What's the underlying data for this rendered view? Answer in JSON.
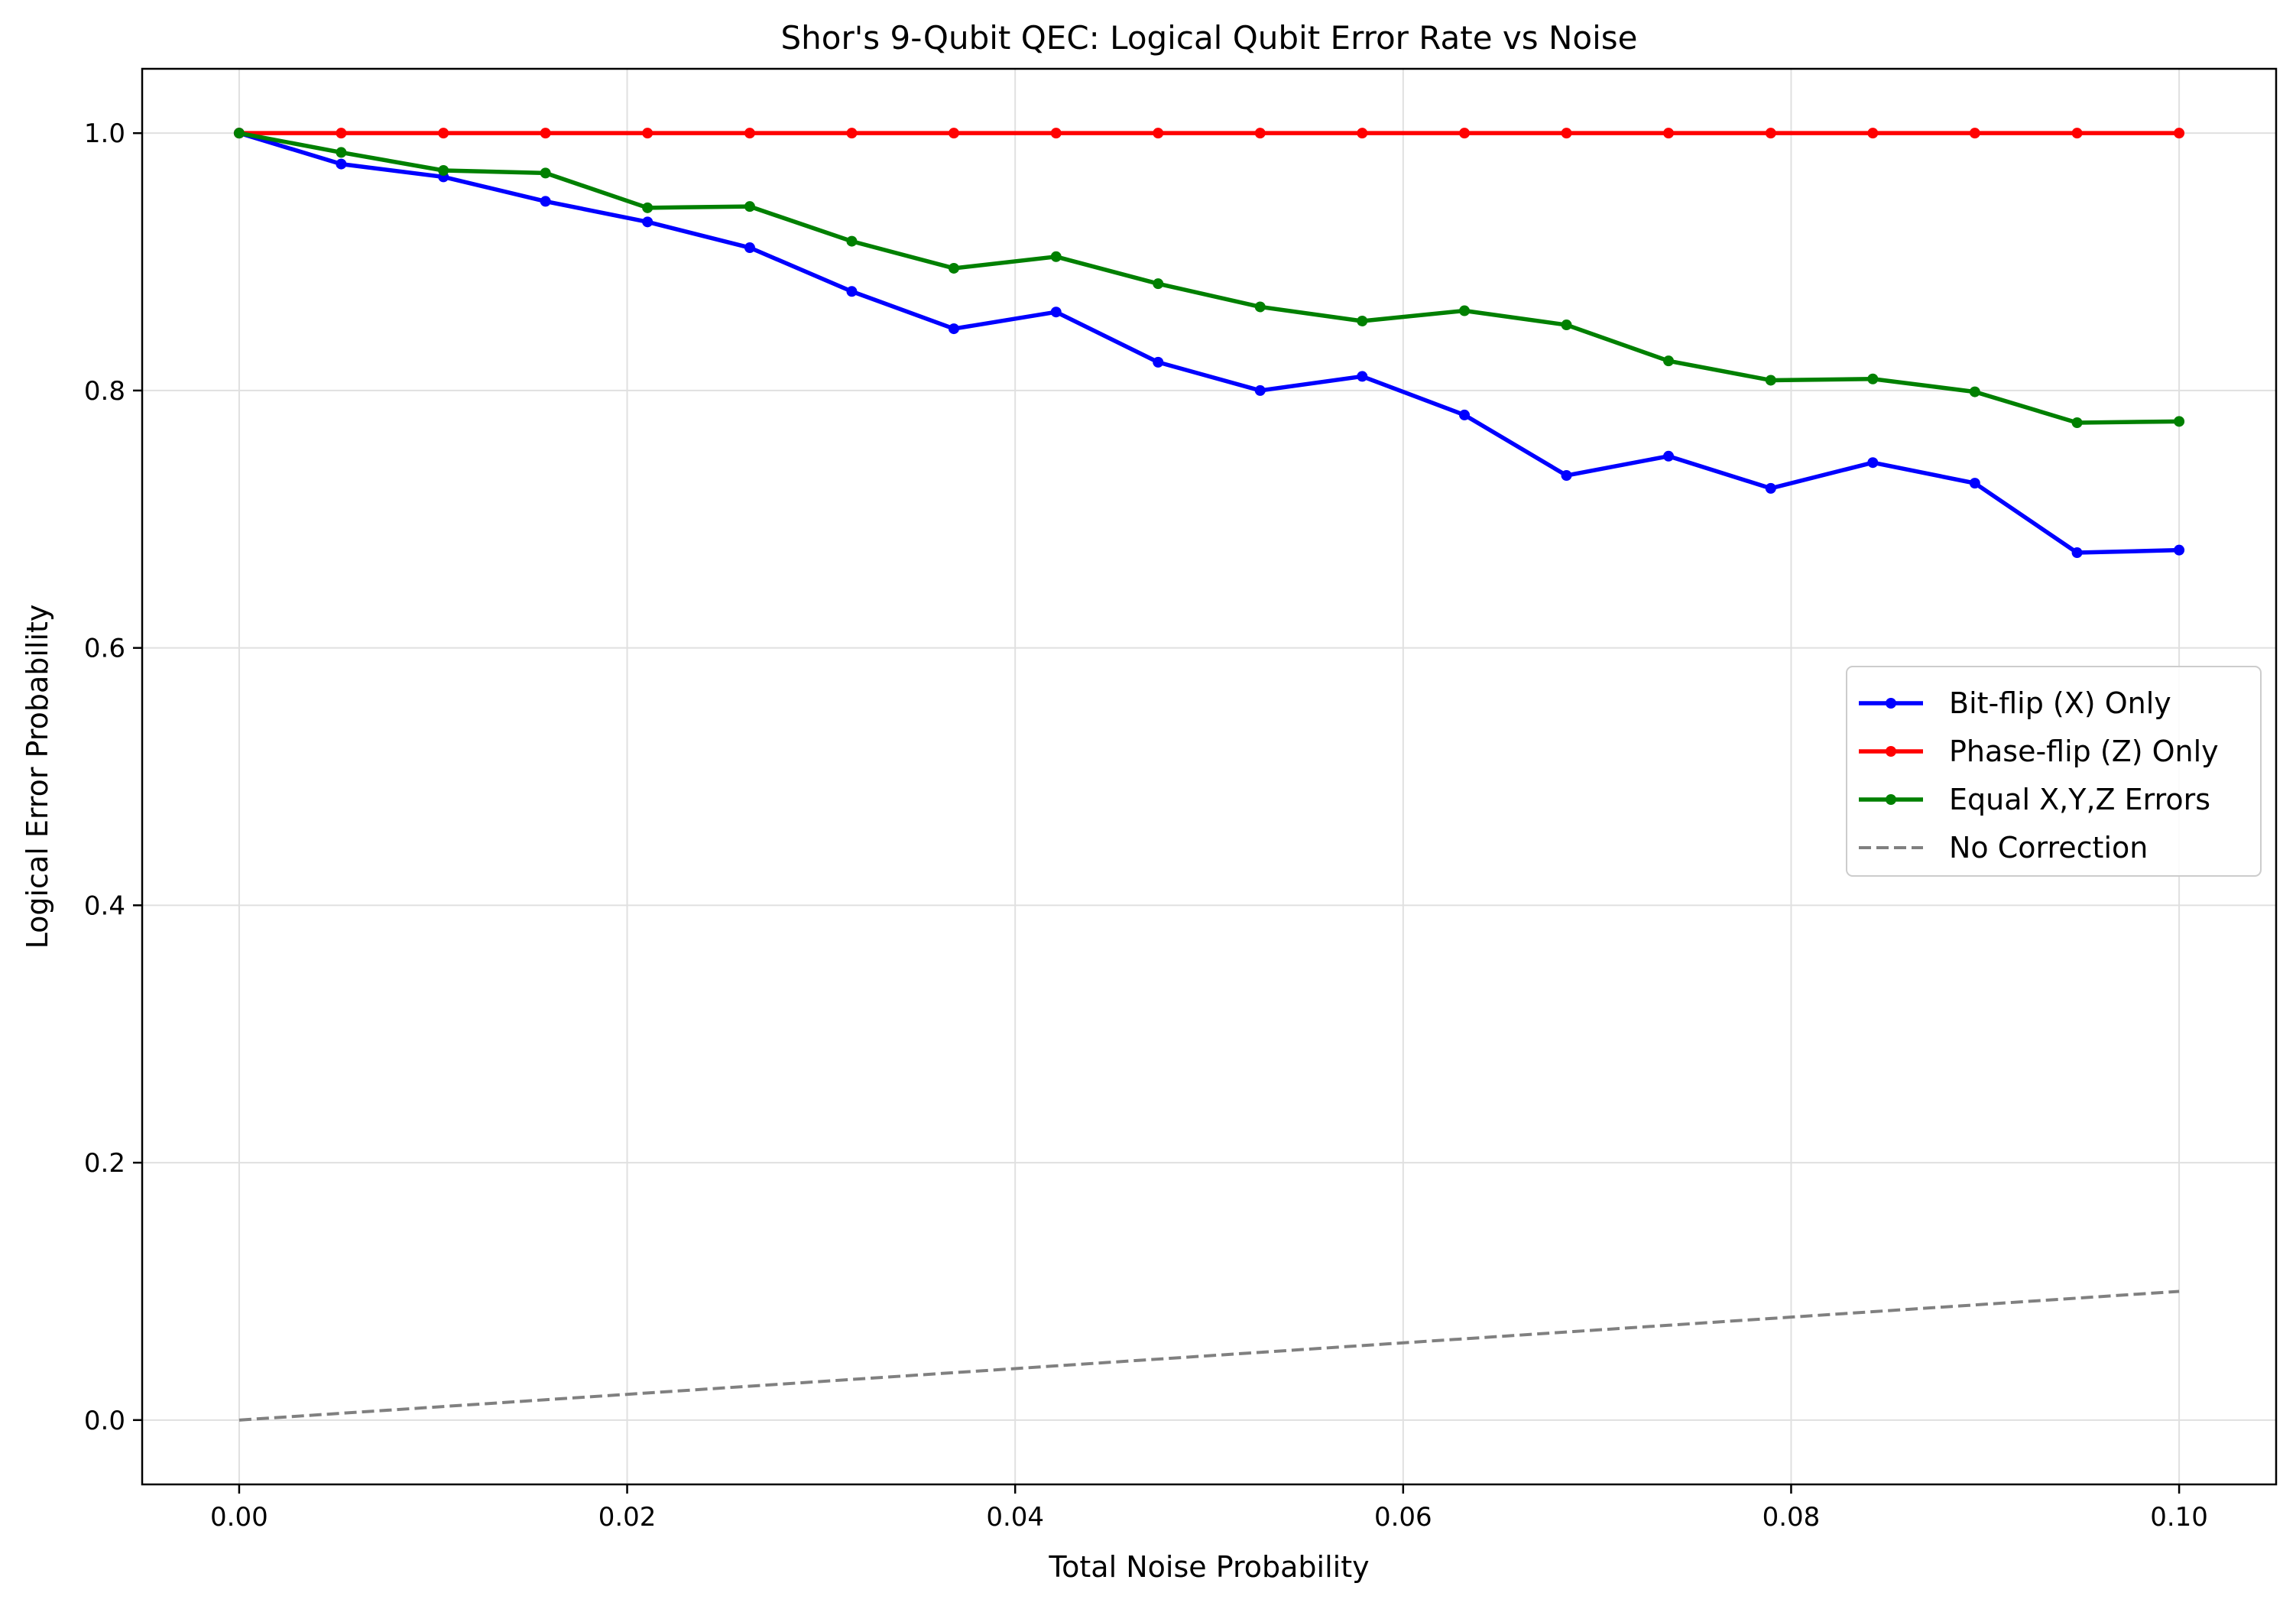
{
  "chart_data": {
    "type": "line",
    "title": "Shor's 9-Qubit QEC: Logical Qubit Error Rate vs Noise",
    "xlabel": "Total Noise Probability",
    "ylabel": "Logical Error Probability",
    "xlim": [
      -0.005,
      0.105
    ],
    "ylim": [
      -0.05,
      1.05
    ],
    "xticks": [
      0.0,
      0.02,
      0.04,
      0.06,
      0.08,
      0.1
    ],
    "xtick_labels": [
      "0.00",
      "0.02",
      "0.04",
      "0.06",
      "0.08",
      "0.10"
    ],
    "yticks": [
      0.0,
      0.2,
      0.4,
      0.6,
      0.8,
      1.0
    ],
    "ytick_labels": [
      "0.0",
      "0.2",
      "0.4",
      "0.6",
      "0.8",
      "1.0"
    ],
    "grid": true,
    "legend_position": "center-right",
    "x": [
      0.0,
      0.00526,
      0.01053,
      0.01579,
      0.02105,
      0.02632,
      0.03158,
      0.03684,
      0.04211,
      0.04737,
      0.05263,
      0.05789,
      0.06316,
      0.06842,
      0.07368,
      0.07895,
      0.08421,
      0.08947,
      0.09474,
      0.1
    ],
    "series": [
      {
        "name": "Bit-flip (X) Only",
        "color": "#0000ff",
        "style": "solid",
        "markers": true,
        "values": [
          1.0,
          0.976,
          0.966,
          0.947,
          0.931,
          0.911,
          0.877,
          0.848,
          0.861,
          0.822,
          0.8,
          0.811,
          0.781,
          0.734,
          0.749,
          0.724,
          0.744,
          0.728,
          0.674,
          0.676
        ]
      },
      {
        "name": "Phase-flip (Z) Only",
        "color": "#ff0000",
        "style": "solid",
        "markers": true,
        "values": [
          1.0,
          1.0,
          1.0,
          1.0,
          1.0,
          1.0,
          1.0,
          1.0,
          1.0,
          1.0,
          1.0,
          1.0,
          1.0,
          1.0,
          1.0,
          1.0,
          1.0,
          1.0,
          1.0,
          1.0
        ]
      },
      {
        "name": "Equal X,Y,Z Errors",
        "color": "#008000",
        "style": "solid",
        "markers": true,
        "values": [
          1.0,
          0.985,
          0.971,
          0.969,
          0.942,
          0.943,
          0.916,
          0.895,
          0.904,
          0.883,
          0.865,
          0.854,
          0.862,
          0.851,
          0.823,
          0.808,
          0.809,
          0.799,
          0.775,
          0.776
        ]
      },
      {
        "name": "No Correction",
        "color": "#808080",
        "style": "dashed",
        "markers": false,
        "values": [
          0.0,
          0.00526,
          0.01053,
          0.01579,
          0.02105,
          0.02632,
          0.03158,
          0.03684,
          0.04211,
          0.04737,
          0.05263,
          0.05789,
          0.06316,
          0.06842,
          0.07368,
          0.07895,
          0.08421,
          0.08947,
          0.09474,
          0.1
        ]
      }
    ]
  }
}
